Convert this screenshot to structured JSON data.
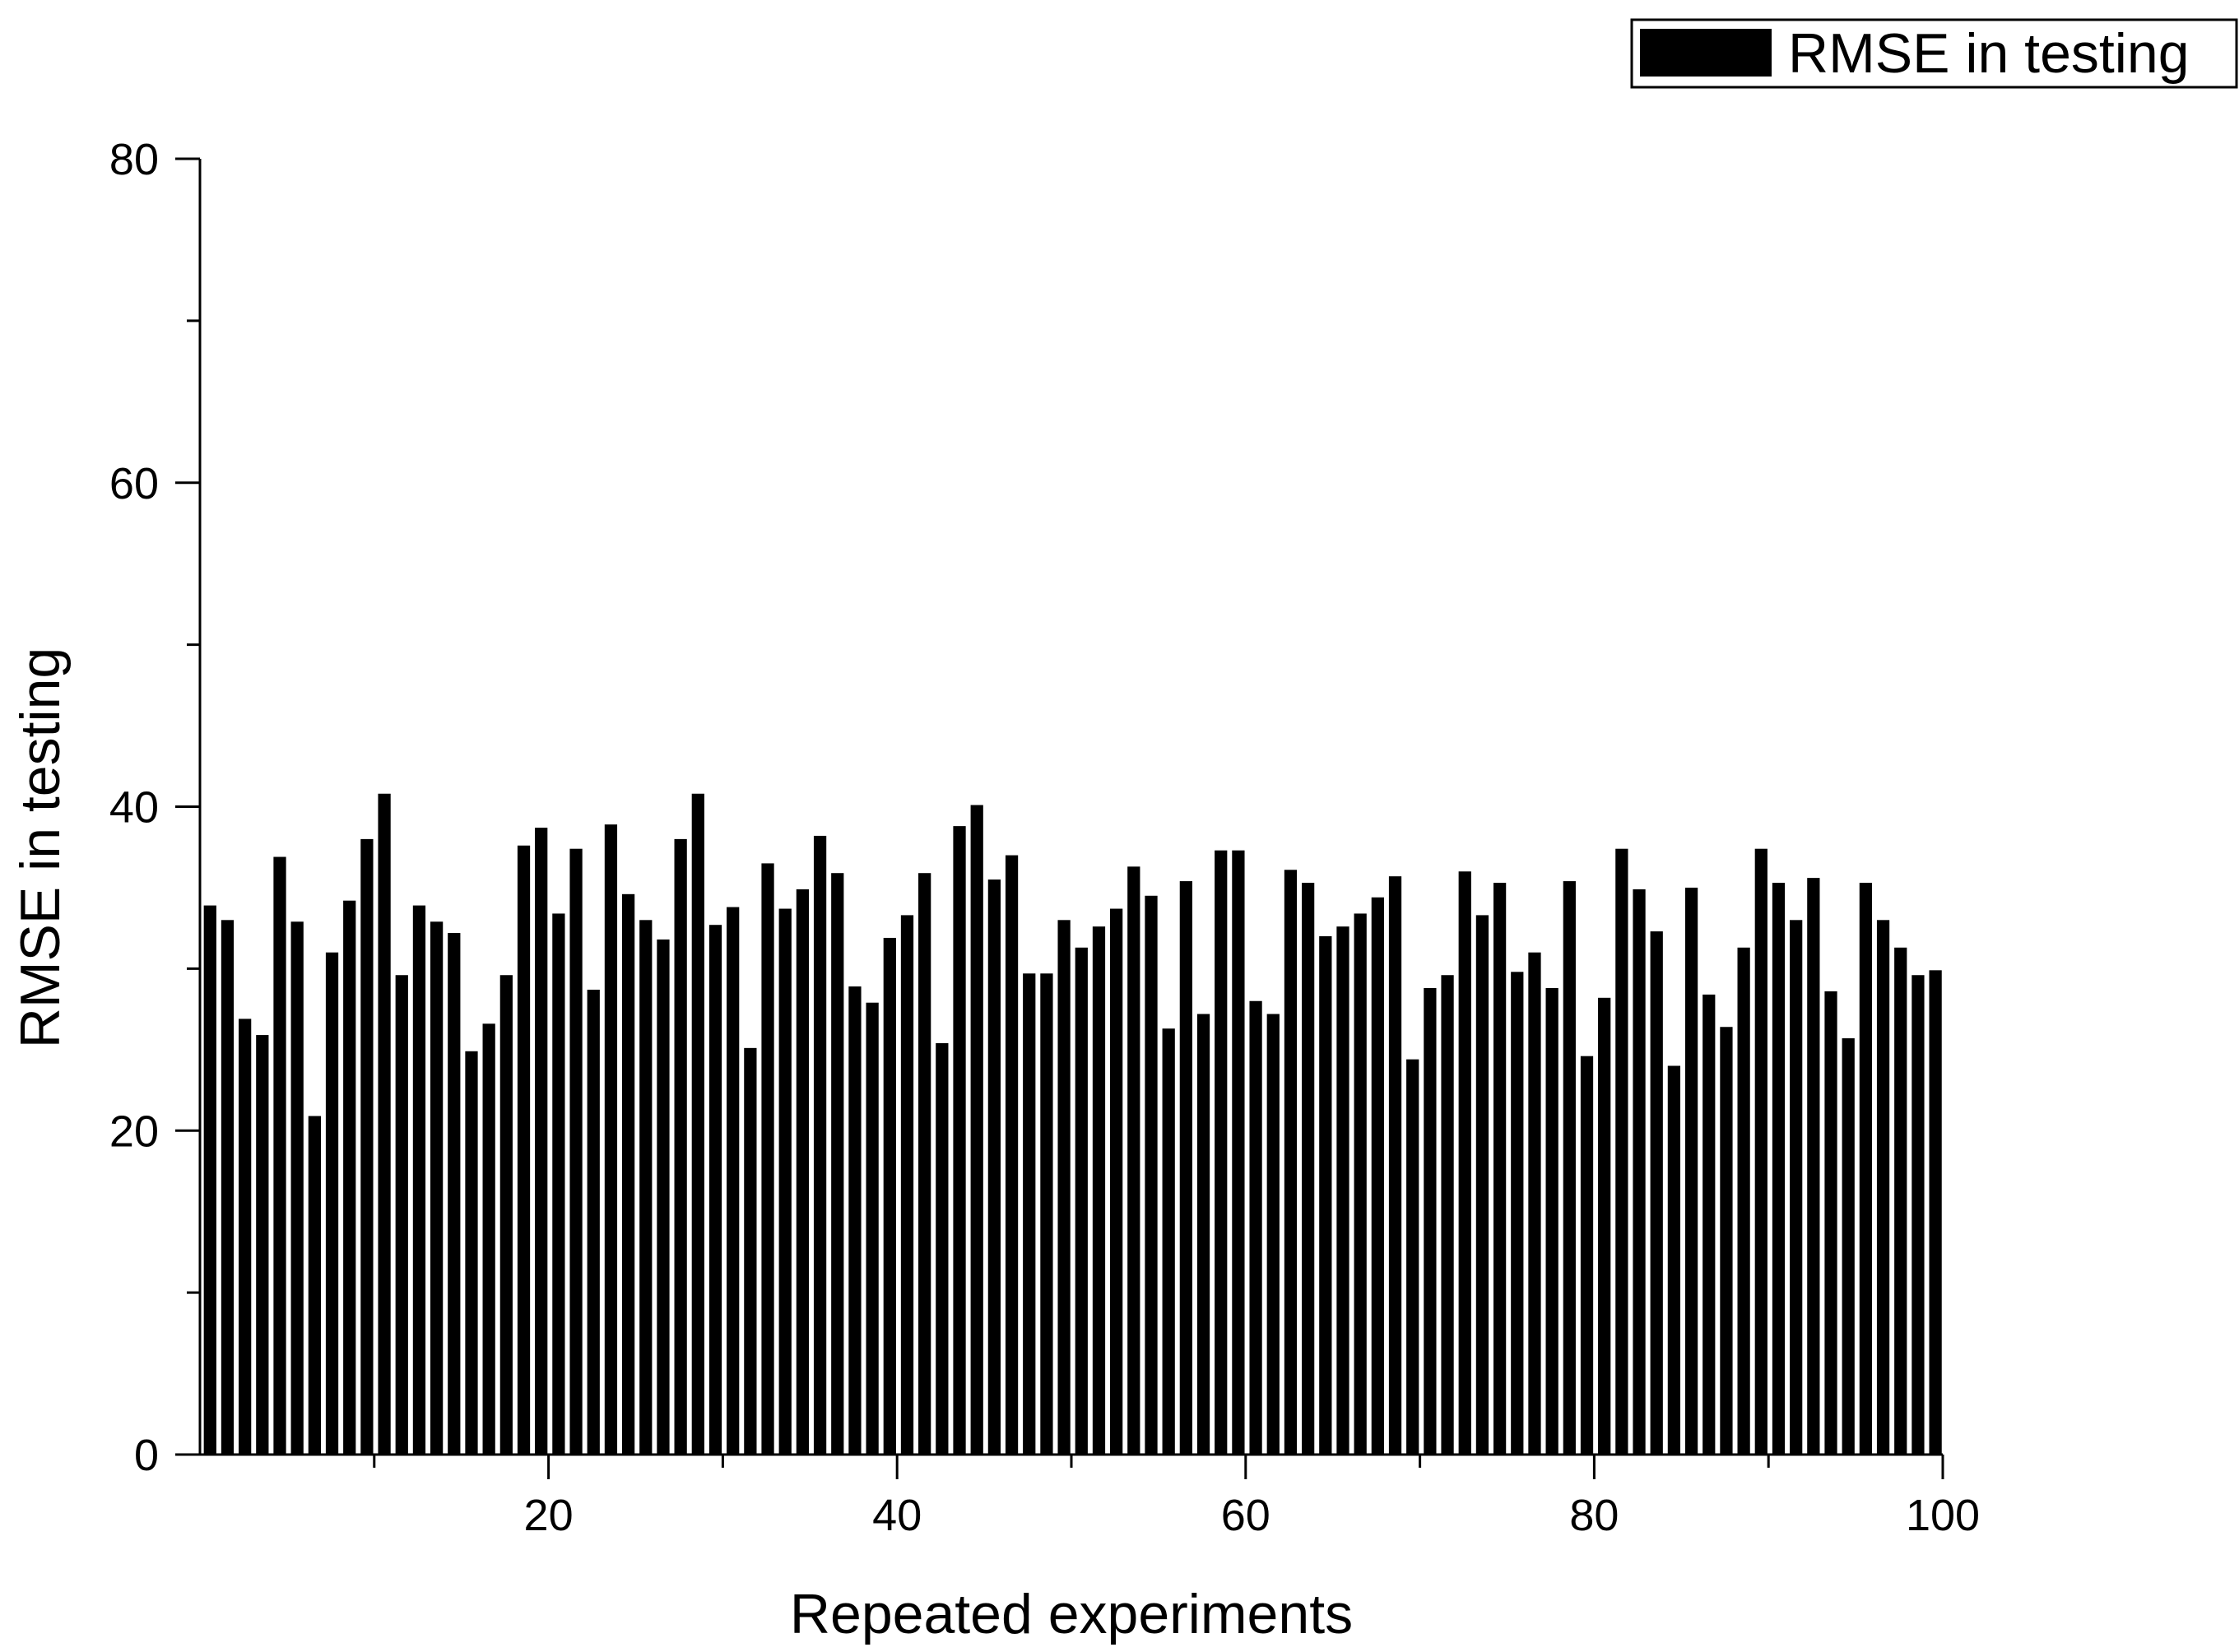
{
  "chart_data": {
    "type": "bar",
    "xlabel": "Repeated experiments",
    "ylabel": "RMSE in testing",
    "legend": {
      "placement": "top-right",
      "entries": [
        "RMSE in testing"
      ]
    },
    "grid": false,
    "xlim": [
      0,
      100
    ],
    "ylim": [
      0,
      80
    ],
    "x_ticks": [
      20,
      40,
      60,
      80,
      100
    ],
    "y_ticks": [
      0,
      20,
      40,
      60,
      80
    ],
    "colors": {
      "bar": "#000000",
      "axis": "#000000",
      "background": "#ffffff"
    },
    "series": [
      {
        "name": "RMSE in testing",
        "x": [
          1,
          2,
          3,
          4,
          5,
          6,
          7,
          8,
          9,
          10,
          11,
          12,
          13,
          14,
          15,
          16,
          17,
          18,
          19,
          20,
          21,
          22,
          23,
          24,
          25,
          26,
          27,
          28,
          29,
          30,
          31,
          32,
          33,
          34,
          35,
          36,
          37,
          38,
          39,
          40,
          41,
          42,
          43,
          44,
          45,
          46,
          47,
          48,
          49,
          50,
          51,
          52,
          53,
          54,
          55,
          56,
          57,
          58,
          59,
          60,
          61,
          62,
          63,
          64,
          65,
          66,
          67,
          68,
          69,
          70,
          71,
          72,
          73,
          74,
          75,
          76,
          77,
          78,
          79,
          80,
          81,
          82,
          83,
          84,
          85,
          86,
          87,
          88,
          89,
          90,
          91,
          92,
          93,
          94,
          95,
          96,
          97,
          98,
          99,
          100
        ],
        "values": [
          33.9,
          33,
          26.9,
          25.9,
          36.9,
          32.9,
          20.9,
          31,
          34.2,
          38,
          40.8,
          29.6,
          33.9,
          32.9,
          32.2,
          24.9,
          26.6,
          29.6,
          37.6,
          38.7,
          33.4,
          37.4,
          28.7,
          38.9,
          34.6,
          33,
          31.8,
          38,
          40.8,
          32.7,
          33.8,
          25.1,
          36.5,
          33.7,
          34.9,
          38.2,
          35.9,
          28.9,
          27.9,
          31.9,
          33.3,
          35.9,
          25.4,
          38.8,
          40.1,
          35.5,
          37,
          29.7,
          29.7,
          33,
          31.3,
          32.6,
          33.7,
          36.3,
          34.5,
          26.3,
          35.4,
          27.2,
          37.3,
          37.3,
          28,
          27.2,
          36.1,
          35.3,
          32,
          32.6,
          33.4,
          34.4,
          35.7,
          24.4,
          28.8,
          29.6,
          36,
          33.3,
          35.3,
          29.8,
          31,
          28.8,
          35.4,
          24.6,
          28.2,
          37.4,
          34.9,
          32.3,
          24,
          35,
          28.4,
          26.4,
          31.3,
          37.4,
          35.3,
          33,
          35.6,
          28.6,
          25.7,
          35.3,
          33,
          31.3,
          29.6,
          29.9
        ]
      }
    ]
  }
}
